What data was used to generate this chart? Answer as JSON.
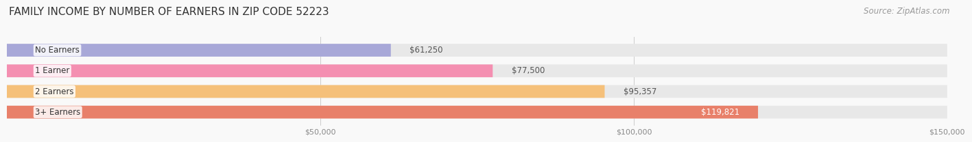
{
  "title": "FAMILY INCOME BY NUMBER OF EARNERS IN ZIP CODE 52223",
  "source": "Source: ZipAtlas.com",
  "categories": [
    "No Earners",
    "1 Earner",
    "2 Earners",
    "3+ Earners"
  ],
  "values": [
    61250,
    77500,
    95357,
    119821
  ],
  "bar_colors": [
    "#a8a8d8",
    "#f48fb1",
    "#f5c07a",
    "#e8806a"
  ],
  "bar_bg_color": "#e8e8e8",
  "label_colors": [
    "#555555",
    "#555555",
    "#555555",
    "#ffffff"
  ],
  "xlim": [
    0,
    150000
  ],
  "xticks": [
    50000,
    100000,
    150000
  ],
  "xtick_labels": [
    "$50,000",
    "$100,000",
    "$150,000"
  ],
  "background_color": "#f9f9f9",
  "title_fontsize": 11,
  "source_fontsize": 8.5,
  "bar_label_fontsize": 8.5,
  "category_fontsize": 8.5,
  "value_labels": [
    "$61,250",
    "$77,500",
    "$95,357",
    "$119,821"
  ]
}
